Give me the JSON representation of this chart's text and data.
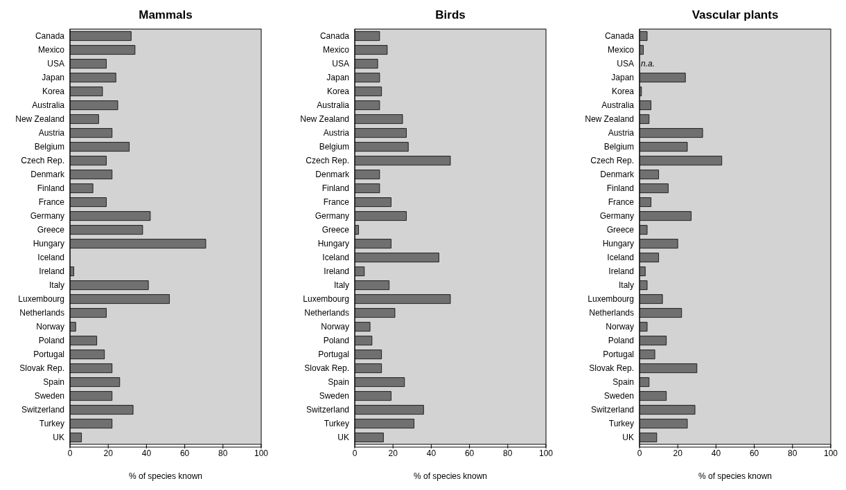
{
  "chart_data": [
    {
      "type": "bar",
      "orientation": "horizontal",
      "title": "Mammals",
      "xlabel": "% of species known",
      "color": "#707070",
      "xlim": [
        0,
        100
      ],
      "xticks": [
        0,
        20,
        40,
        60,
        80,
        100
      ],
      "grid": false,
      "categories": [
        "Canada",
        "Mexico",
        "USA",
        "Japan",
        "Korea",
        "Australia",
        "New Zealand",
        "Austria",
        "Belgium",
        "Czech Rep.",
        "Denmark",
        "Finland",
        "France",
        "Germany",
        "Greece",
        "Hungary",
        "Iceland",
        "Ireland",
        "Italy",
        "Luxembourg",
        "Netherlands",
        "Norway",
        "Poland",
        "Portugal",
        "Slovak Rep.",
        "Spain",
        "Sweden",
        "Switzerland",
        "Turkey",
        "UK"
      ],
      "values": [
        32,
        34,
        19,
        24,
        17,
        25,
        15,
        22,
        31,
        19,
        22,
        12,
        19,
        42,
        38,
        71,
        null,
        2,
        41,
        52,
        19,
        3,
        14,
        18,
        22,
        26,
        22,
        33,
        22,
        6
      ]
    },
    {
      "type": "bar",
      "orientation": "horizontal",
      "title": "Birds",
      "xlabel": "% of species known",
      "color": "#707070",
      "xlim": [
        0,
        100
      ],
      "xticks": [
        0,
        20,
        40,
        60,
        80,
        100
      ],
      "grid": false,
      "categories": [
        "Canada",
        "Mexico",
        "USA",
        "Japan",
        "Korea",
        "Australia",
        "New Zealand",
        "Austria",
        "Belgium",
        "Czech Rep.",
        "Denmark",
        "Finland",
        "France",
        "Germany",
        "Greece",
        "Hungary",
        "Iceland",
        "Ireland",
        "Italy",
        "Luxembourg",
        "Netherlands",
        "Norway",
        "Poland",
        "Portugal",
        "Slovak Rep.",
        "Spain",
        "Sweden",
        "Switzerland",
        "Turkey",
        "UK"
      ],
      "values": [
        13,
        17,
        12,
        13,
        14,
        13,
        25,
        27,
        28,
        50,
        13,
        13,
        19,
        27,
        2,
        19,
        44,
        5,
        18,
        50,
        21,
        8,
        9,
        14,
        14,
        26,
        19,
        36,
        31,
        15
      ]
    },
    {
      "type": "bar",
      "orientation": "horizontal",
      "title": "Vascular plants",
      "xlabel": "% of species known",
      "color": "#707070",
      "xlim": [
        0,
        100
      ],
      "xticks": [
        0,
        20,
        40,
        60,
        80,
        100
      ],
      "grid": false,
      "categories": [
        "Canada",
        "Mexico",
        "USA",
        "Japan",
        "Korea",
        "Australia",
        "New Zealand",
        "Austria",
        "Belgium",
        "Czech Rep.",
        "Denmark",
        "Finland",
        "France",
        "Germany",
        "Greece",
        "Hungary",
        "Iceland",
        "Ireland",
        "Italy",
        "Luxembourg",
        "Netherlands",
        "Norway",
        "Poland",
        "Portugal",
        "Slovak Rep.",
        "Spain",
        "Sweden",
        "Switzerland",
        "Turkey",
        "UK"
      ],
      "values": [
        4,
        2,
        null,
        24,
        1,
        6,
        5,
        33,
        25,
        43,
        10,
        15,
        6,
        27,
        4,
        20,
        10,
        3,
        4,
        12,
        22,
        4,
        14,
        8,
        30,
        5,
        14,
        29,
        25,
        9
      ],
      "annotations": [
        {
          "text": "n.a.",
          "x": 0,
          "y": "USA"
        }
      ]
    }
  ]
}
